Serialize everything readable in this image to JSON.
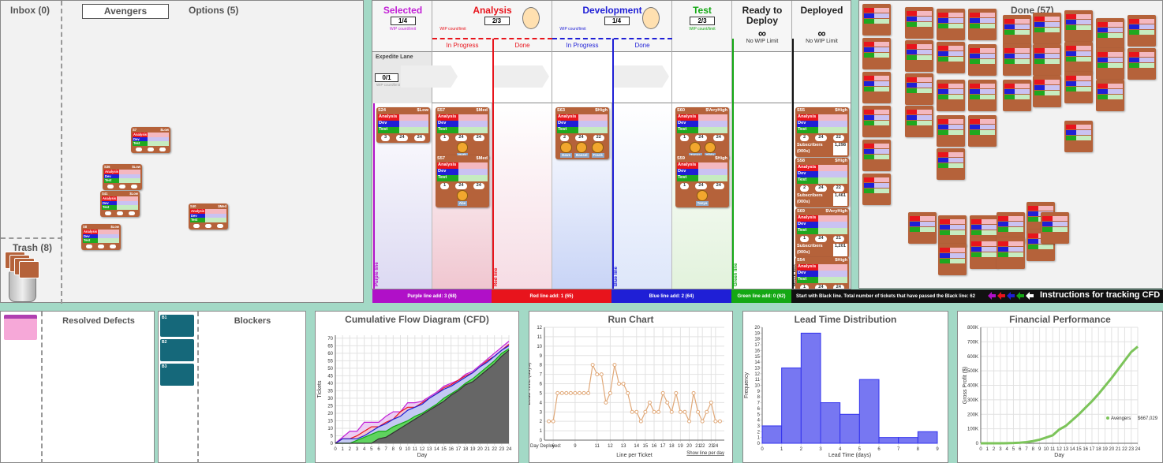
{
  "left": {
    "inbox": "Inbox (0)",
    "team": "Avengers",
    "options": "Options (5)",
    "trash": "Trash (8)",
    "cards": [
      {
        "id": "S7",
        "cls": "$Low"
      },
      {
        "id": "S36",
        "cls": "$Low"
      },
      {
        "id": "S41",
        "cls": "$Low"
      },
      {
        "id": "S40",
        "cls": "$Med"
      },
      {
        "id": "S8",
        "cls": "$Low"
      }
    ]
  },
  "card_rows": [
    "Analysis",
    "Dev",
    "Test"
  ],
  "subscribers_label": "Subscribers (000s)",
  "board": {
    "columns": [
      {
        "title": "Selected",
        "wip": "1/4",
        "wip_note": "WIP count/limit",
        "color": "#c21fd6"
      },
      {
        "title": "Analysis",
        "wip": "2/3",
        "wip_note": "WIP count/limit",
        "color": "#e8141c",
        "subs": [
          "In Progress",
          "Done"
        ]
      },
      {
        "title": "Development",
        "wip": "1/4",
        "wip_note": "WIP count/limit",
        "color": "#1f1fd6",
        "subs": [
          "In Progress",
          "Done"
        ]
      },
      {
        "title": "Test",
        "wip": "2/3",
        "wip_note": "WIP count/limit",
        "color": "#14a814"
      },
      {
        "title": "Ready to Deploy",
        "wip": "∞",
        "wip_note": "No WIP Limit",
        "color": "#222222"
      },
      {
        "title": "Deployed",
        "wip": "∞",
        "wip_note": "No WIP Limit",
        "color": "#222222"
      }
    ],
    "expedite": {
      "title": "Expedite Lane",
      "wip": "0/1",
      "wip_note": "WIP count/limit"
    },
    "lines": [
      {
        "label": "Purple line",
        "color": "#b010c8",
        "add": "Purple line add: 3 (68)"
      },
      {
        "label": "Red line",
        "color": "#e8141c",
        "add": "Red line add: 1 (65)"
      },
      {
        "label": "Blue line",
        "color": "#1f1fd6",
        "add": "Blue line add: 2 (64)"
      },
      {
        "label": "Green line",
        "color": "#14a814",
        "add": "Green line add: 0 (62)"
      },
      {
        "label": "Black line",
        "color": "#111111",
        "add": "Start with Black line. Total number of tickets that have passed the Black line: 62"
      }
    ],
    "instructions": "Instructions for tracking CFD",
    "cards": [
      {
        "id": "S24",
        "cls": "$Low",
        "footer": [
          3,
          24,
          24
        ]
      },
      {
        "id": "S57",
        "cls": "$Med",
        "footer": [
          1,
          24,
          24
        ],
        "workers": [
          "Beth"
        ]
      },
      {
        "id": "S57",
        "cls": "$Med",
        "footer": [
          1,
          24,
          24
        ],
        "workers": [
          "Abe"
        ]
      },
      {
        "id": "S63",
        "cls": "$High",
        "footer": [
          2,
          24,
          22
        ],
        "workers": [
          "Dave",
          "Bassel",
          "Frank"
        ]
      },
      {
        "id": "S60",
        "cls": "$VeryHigh",
        "footer": [
          1,
          24,
          24
        ],
        "workers": [
          "Tanya",
          "Tilda"
        ]
      },
      {
        "id": "S59",
        "cls": "$High",
        "footer": [
          1,
          24,
          24
        ],
        "workers": [
          "Tanya"
        ]
      },
      {
        "id": "S55",
        "cls": "$High",
        "footer": [
          2,
          24,
          22
        ],
        "subscribers": "1,298"
      },
      {
        "id": "S58",
        "cls": "$High",
        "footer": [
          2,
          24,
          22
        ],
        "subscribers": "1,461"
      },
      {
        "id": "S69",
        "cls": "$VeryHigh",
        "footer": [
          1,
          24,
          21
        ],
        "subscribers": "1,201"
      },
      {
        "id": "S54",
        "cls": "$High",
        "footer": [
          1,
          24,
          24
        ]
      }
    ]
  },
  "done": {
    "title": "Done (57)"
  },
  "defects": {
    "title": "Resolved Defects"
  },
  "blockers": {
    "title": "Blockers",
    "cards": [
      {
        "id": "B1"
      },
      {
        "id": "B2"
      },
      {
        "id": "B3"
      }
    ]
  },
  "chart_data": [
    {
      "type": "area",
      "title": "Cumulative Flow Diagram (CFD)",
      "xlabel": "Day",
      "ylabel": "Tickets",
      "x": [
        0,
        1,
        2,
        3,
        4,
        5,
        6,
        7,
        8,
        9,
        10,
        11,
        12,
        13,
        14,
        15,
        16,
        17,
        18,
        19,
        20,
        21,
        22,
        23,
        24
      ],
      "xlim": [
        0,
        24
      ],
      "xticks": [
        0,
        1,
        2,
        3,
        4,
        5,
        6,
        7,
        8,
        9,
        10,
        11,
        12,
        13,
        14,
        15,
        16,
        17,
        18,
        19,
        20,
        21,
        22,
        23,
        24
      ],
      "ylim": [
        0,
        72
      ],
      "yticks": [
        0,
        5,
        10,
        15,
        20,
        25,
        30,
        35,
        40,
        45,
        50,
        55,
        60,
        65,
        70
      ],
      "grid": true,
      "series": [
        {
          "color": "#c21fd6",
          "fill": "#eccdf4",
          "values": [
            0,
            4,
            8,
            8,
            14,
            14,
            14,
            18,
            21,
            21,
            27,
            27,
            28,
            31,
            34,
            38,
            40,
            42,
            46,
            48,
            52,
            56,
            60,
            64,
            68
          ]
        },
        {
          "color": "#e8141c",
          "fill": "#f3c3d2",
          "values": [
            0,
            3,
            3,
            5,
            8,
            11,
            11,
            14,
            16,
            21,
            24,
            24,
            27,
            30,
            33,
            37,
            39,
            42,
            45,
            47,
            51,
            55,
            58,
            62,
            66
          ]
        },
        {
          "color": "#1f1fd6",
          "fill": "#c3c9f3",
          "values": [
            0,
            3,
            3,
            3,
            5,
            8,
            11,
            13,
            16,
            18,
            22,
            24,
            26,
            30,
            33,
            36,
            38,
            41,
            44,
            47,
            51,
            54,
            58,
            62,
            65
          ]
        },
        {
          "color": "#14a814",
          "fill": "#5fd35f",
          "values": [
            0,
            0,
            0,
            2,
            4,
            6,
            8,
            8,
            11,
            13,
            15,
            18,
            20,
            23,
            26,
            30,
            33,
            36,
            40,
            43,
            47,
            51,
            55,
            60,
            63
          ]
        },
        {
          "color": "#333333",
          "fill": "#666666",
          "values": [
            0,
            0,
            0,
            0,
            0,
            0,
            3,
            4,
            7,
            10,
            13,
            16,
            19,
            22,
            25,
            28,
            32,
            35,
            39,
            41,
            45,
            49,
            53,
            58,
            62
          ]
        }
      ]
    },
    {
      "type": "line",
      "title": "Run Chart",
      "xlabel": "Line per Ticket",
      "ylabel": "Lead Time (days)",
      "x_caption": "Day Deployed:",
      "link": "Show line per day",
      "x": [
        1,
        2,
        3,
        4,
        5,
        6,
        7,
        8,
        9,
        10,
        11,
        12,
        13,
        14,
        15,
        16,
        17,
        18,
        19,
        20,
        21,
        22,
        23,
        24,
        25,
        26,
        27,
        28,
        29,
        30,
        31,
        32,
        33,
        34,
        35,
        36,
        37,
        38,
        39,
        40
      ],
      "xlim": [
        0,
        41
      ],
      "xticks": [
        {
          "value": 2,
          "label": "6"
        },
        {
          "value": 7,
          "label": "9"
        },
        {
          "value": 12,
          "label": "11"
        },
        {
          "value": 15,
          "label": "12"
        },
        {
          "value": 18,
          "label": "13"
        },
        {
          "value": 21,
          "label": "14"
        },
        {
          "value": 23,
          "label": "15"
        },
        {
          "value": 25,
          "label": "16"
        },
        {
          "value": 27,
          "label": "17"
        },
        {
          "value": 29,
          "label": "18"
        },
        {
          "value": 31,
          "label": "19"
        },
        {
          "value": 33,
          "label": "20"
        },
        {
          "value": 35,
          "label": "21"
        },
        {
          "value": 36,
          "label": "22"
        },
        {
          "value": 38,
          "label": "23"
        },
        {
          "value": 39,
          "label": "24"
        }
      ],
      "ylim": [
        0,
        12
      ],
      "yticks": [
        0,
        1,
        2,
        3,
        4,
        5,
        6,
        7,
        8,
        9,
        10,
        11,
        12
      ],
      "grid": true,
      "color": "#e0a878",
      "values": [
        2,
        2,
        5,
        5,
        5,
        5,
        5,
        5,
        5,
        5,
        8,
        7,
        7,
        4,
        5,
        8,
        6,
        6,
        5,
        3,
        3,
        2,
        3,
        4,
        3,
        3,
        5,
        4,
        3,
        5,
        3,
        3,
        2,
        5,
        3,
        2,
        3,
        4,
        2,
        2
      ]
    },
    {
      "type": "histogram",
      "title": "Lead Time Distribution",
      "xlabel": "Lead Time (days)",
      "ylabel": "Frequency",
      "bins": [
        0,
        1,
        2,
        3,
        4,
        5,
        6,
        7,
        8,
        9
      ],
      "values": [
        3,
        13,
        19,
        7,
        5,
        11,
        1,
        1,
        2
      ],
      "xlim": [
        0,
        9
      ],
      "xticks": [
        0,
        1,
        2,
        3,
        4,
        5,
        6,
        7,
        8,
        9
      ],
      "ylim": [
        0,
        20
      ],
      "yticks": [
        0,
        1,
        2,
        3,
        4,
        5,
        6,
        7,
        8,
        9,
        10,
        11,
        12,
        13,
        14,
        15,
        16,
        17,
        18,
        19,
        20
      ],
      "color": "#3333ee",
      "fill": "#7777f2"
    },
    {
      "type": "line",
      "title": "Financial Performance",
      "xlabel": "Day",
      "ylabel": "Gross Profit ($)",
      "x": [
        0,
        1,
        2,
        3,
        4,
        5,
        6,
        7,
        8,
        9,
        10,
        11,
        12,
        13,
        14,
        15,
        16,
        17,
        18,
        19,
        20,
        21,
        22,
        23,
        24
      ],
      "xlim": [
        0,
        24
      ],
      "xticks": [
        0,
        1,
        2,
        3,
        4,
        5,
        6,
        7,
        8,
        9,
        10,
        11,
        12,
        13,
        14,
        15,
        16,
        17,
        18,
        19,
        20,
        21,
        22,
        23,
        24
      ],
      "ylim": [
        0,
        800000
      ],
      "yticks": [
        0,
        {
          "value": 100000,
          "label": "100K"
        },
        {
          "value": 200000,
          "label": "200K"
        },
        {
          "value": 300000,
          "label": "300K"
        },
        {
          "value": 400000,
          "label": "400K"
        },
        {
          "value": 500000,
          "label": "500K"
        },
        {
          "value": 600000,
          "label": "600K"
        },
        {
          "value": 700000,
          "label": "700K"
        },
        {
          "value": 800000,
          "label": "800K"
        }
      ],
      "grid": true,
      "series": [
        {
          "name": "Avengers",
          "color": "#7cc45a",
          "legend_value": "$667,029",
          "values": [
            0,
            0,
            0,
            0,
            1000,
            2000,
            4000,
            8000,
            15000,
            25000,
            40000,
            55000,
            95000,
            120000,
            160000,
            200000,
            245000,
            290000,
            340000,
            395000,
            450000,
            510000,
            570000,
            630000,
            667029
          ]
        }
      ]
    }
  ]
}
